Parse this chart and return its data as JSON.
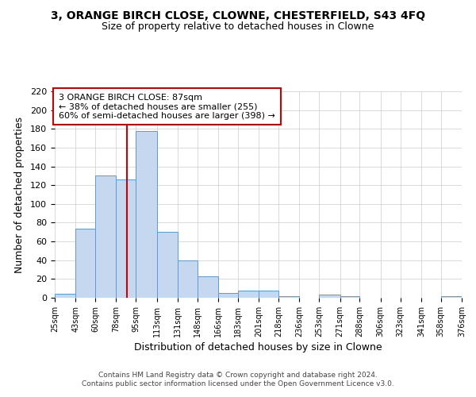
{
  "title": "3, ORANGE BIRCH CLOSE, CLOWNE, CHESTERFIELD, S43 4FQ",
  "subtitle": "Size of property relative to detached houses in Clowne",
  "xlabel": "Distribution of detached houses by size in Clowne",
  "ylabel": "Number of detached properties",
  "footer_line1": "Contains HM Land Registry data © Crown copyright and database right 2024.",
  "footer_line2": "Contains public sector information licensed under the Open Government Licence v3.0.",
  "annotation_line1": "3 ORANGE BIRCH CLOSE: 87sqm",
  "annotation_line2": "← 38% of detached houses are smaller (255)",
  "annotation_line3": "60% of semi-detached houses are larger (398) →",
  "bar_color": "#c5d8f0",
  "bar_edge_color": "#5b9bd5",
  "bg_color": "#ffffff",
  "grid_color": "#cccccc",
  "vline_color": "#cc0000",
  "vline_x": 87,
  "annotation_box_edge_color": "#cc0000",
  "categories": [
    "25sqm",
    "43sqm",
    "60sqm",
    "78sqm",
    "95sqm",
    "113sqm",
    "131sqm",
    "148sqm",
    "166sqm",
    "183sqm",
    "201sqm",
    "218sqm",
    "236sqm",
    "253sqm",
    "271sqm",
    "288sqm",
    "306sqm",
    "323sqm",
    "341sqm",
    "358sqm",
    "376sqm"
  ],
  "bin_edges": [
    25,
    43,
    60,
    78,
    95,
    113,
    131,
    148,
    166,
    183,
    201,
    218,
    236,
    253,
    271,
    288,
    306,
    323,
    341,
    358,
    376
  ],
  "values": [
    4,
    74,
    130,
    126,
    178,
    70,
    40,
    23,
    5,
    8,
    8,
    2,
    0,
    3,
    2,
    0,
    0,
    0,
    0,
    2
  ],
  "ylim": [
    0,
    220
  ],
  "yticks": [
    0,
    20,
    40,
    60,
    80,
    100,
    120,
    140,
    160,
    180,
    200,
    220
  ]
}
